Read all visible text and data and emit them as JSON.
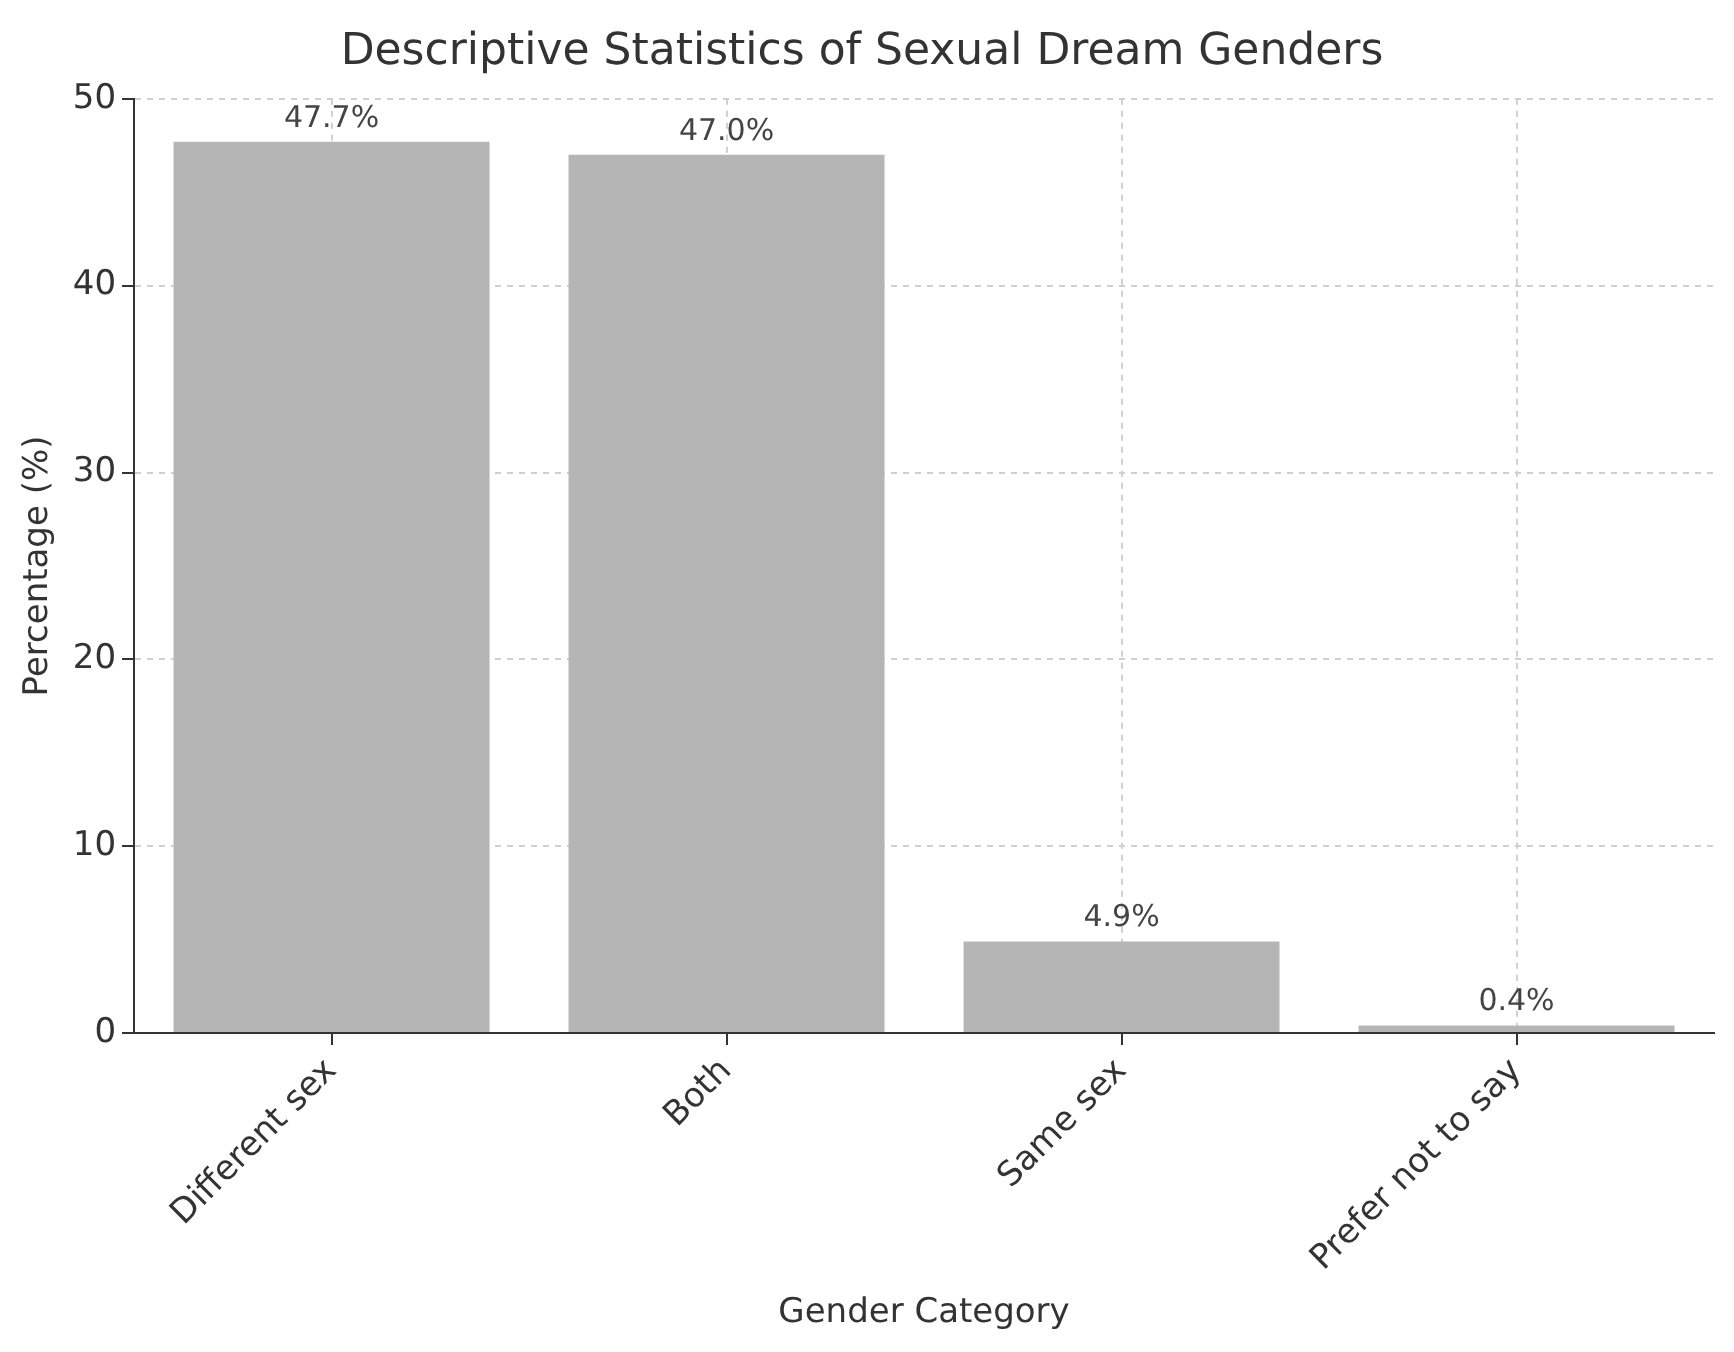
{
  "chart_data": {
    "type": "bar",
    "title": "Descriptive Statistics of Sexual Dream Genders",
    "xlabel": "Gender Category",
    "ylabel": "Percentage (%)",
    "categories": [
      "Different sex",
      "Both",
      "Same sex",
      "Prefer not to say"
    ],
    "values": [
      47.7,
      47.0,
      4.9,
      0.4
    ],
    "color": "#b5b5b5",
    "value_labels": [
      "47.7%",
      "47.0%",
      "4.9%",
      "0.4%"
    ],
    "ylim": [
      0,
      50
    ],
    "yticks": [
      0,
      10,
      20,
      30,
      40,
      50
    ],
    "grid": true
  }
}
